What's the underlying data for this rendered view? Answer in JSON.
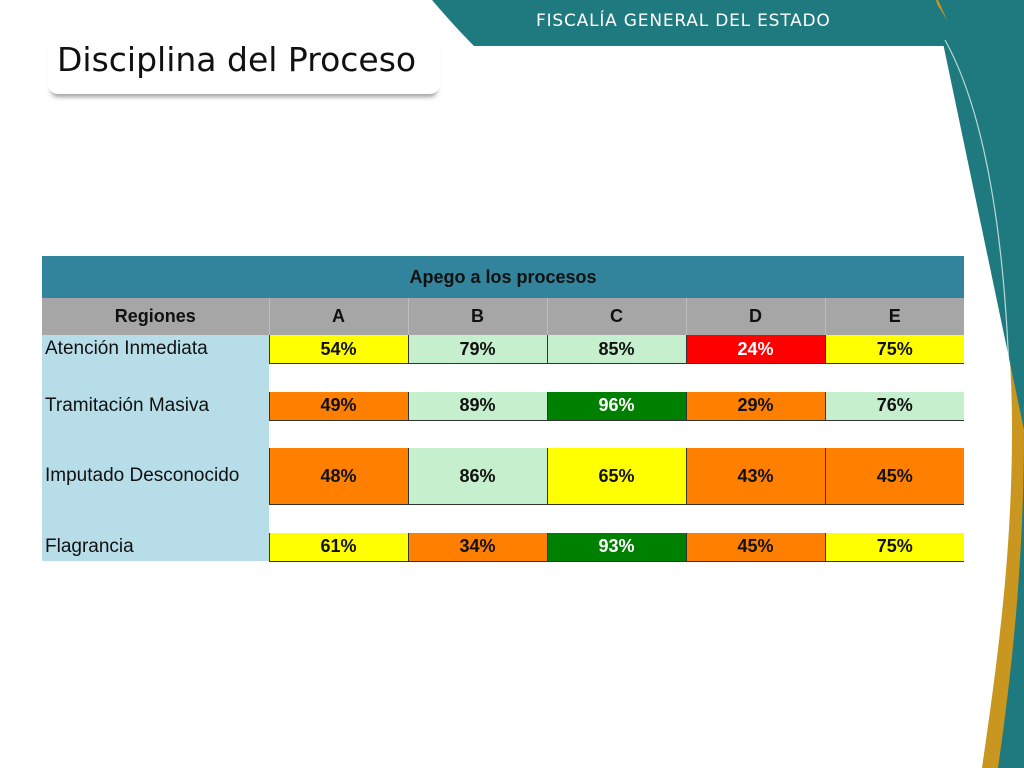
{
  "header": {
    "organization": "FISCALÍA GENERAL DEL ESTADO"
  },
  "slide": {
    "title": "Disciplina del Proceso"
  },
  "table": {
    "title": "Apego a los procesos",
    "columns": [
      "Regiones",
      "A",
      "B",
      "C",
      "D",
      "E"
    ],
    "rows": [
      {
        "label": "Atención Inmediata",
        "values": [
          "54%",
          "79%",
          "85%",
          "24%",
          "75%"
        ],
        "colors": [
          "yellow",
          "lightgreen",
          "lightgreen",
          "red",
          "yellow"
        ]
      },
      {
        "label": "Tramitación Masiva",
        "values": [
          "49%",
          "89%",
          "96%",
          "29%",
          "76%"
        ],
        "colors": [
          "orange",
          "lightgreen",
          "green",
          "orange",
          "lightgreen"
        ]
      },
      {
        "label": "Imputado Desconocido",
        "values": [
          "48%",
          "86%",
          "65%",
          "43%",
          "45%"
        ],
        "colors": [
          "orange",
          "lightgreen",
          "yellow",
          "orange",
          "orange"
        ]
      },
      {
        "label": "Flagrancia",
        "values": [
          "61%",
          "34%",
          "93%",
          "45%",
          "75%"
        ],
        "colors": [
          "yellow",
          "orange",
          "green",
          "orange",
          "yellow"
        ]
      }
    ]
  },
  "colors": {
    "yellow": "#ffff00",
    "lightgreen": "#c6efce",
    "red": "#ff0000",
    "orange": "#ff8000",
    "green": "#008000",
    "teal": "#1f7a7f",
    "gold": "#c9971f",
    "header_blue": "#31849b",
    "label_blue": "#b7dee8"
  }
}
